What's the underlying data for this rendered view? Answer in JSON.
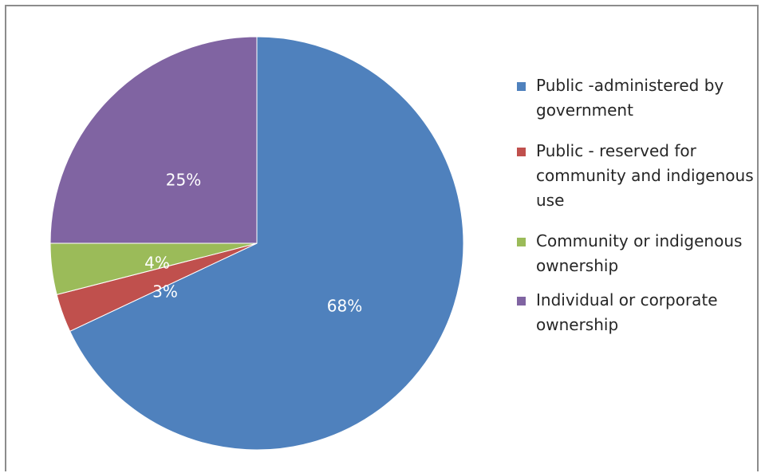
{
  "chart_data": {
    "type": "pie",
    "categories": [
      "Public -administered by government",
      "Public - reserved for community and indigenous use",
      "Community or indigenous ownership",
      "Individual or corporate ownership"
    ],
    "values": [
      68,
      3,
      4,
      25
    ],
    "labels": [
      "68%",
      "3%",
      "4%",
      "25%"
    ],
    "colors": [
      "#4f81bd",
      "#c0504d",
      "#9bbb59",
      "#8064a2"
    ],
    "start_angle_deg": 0,
    "direction": "clockwise",
    "legend_position": "right"
  }
}
